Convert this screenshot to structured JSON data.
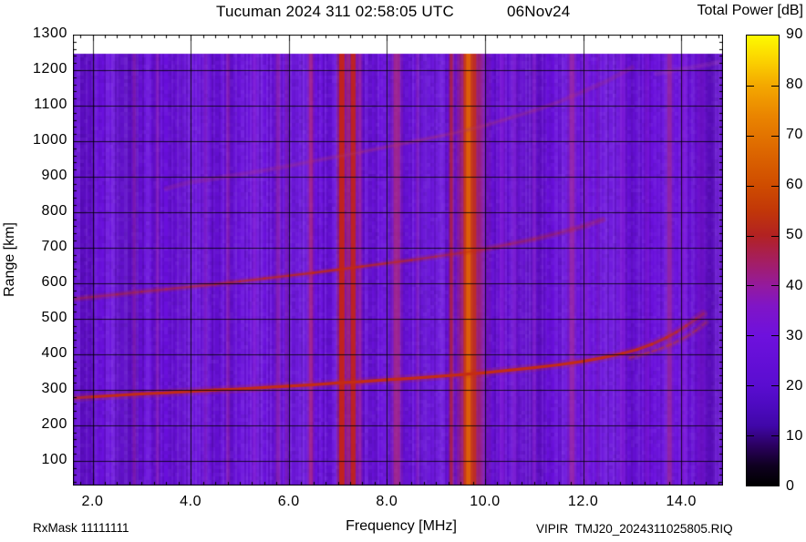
{
  "header": {
    "title": "Tucuman 2024 311 02:58:05 UTC",
    "date": "06Nov24"
  },
  "footer": {
    "left": "RxMask 11111111",
    "right": "VIPIR  TMJ20_2024311025805.RIQ"
  },
  "chart_data": {
    "type": "heatmap",
    "subtype": "ionogram-spectrogram",
    "title": "Tucuman 2024 311 02:58:05 UTC 06Nov24",
    "xlabel": "Frequency [MHz]",
    "ylabel": "Range [km]",
    "grid": true,
    "x_axis": {
      "min": 1.6,
      "max": 14.85,
      "minor_step": 0.25,
      "major_ticks": [
        2,
        4,
        6,
        8,
        10,
        12,
        14
      ],
      "tick_labels": [
        "2.0",
        "4.0",
        "6.0",
        "8.0",
        "10.0",
        "12.0",
        "14.0"
      ]
    },
    "y_axis": {
      "min": 30,
      "max": 1300,
      "minor_step": 20,
      "major_ticks": [
        100,
        200,
        300,
        400,
        500,
        600,
        700,
        800,
        900,
        1000,
        1100,
        1200,
        1300
      ],
      "tick_labels": [
        "100",
        "200",
        "300",
        "400",
        "500",
        "600",
        "700",
        "800",
        "900",
        "1000",
        "1100",
        "1200",
        "1300"
      ]
    },
    "background": {
      "base_color": "#6a10dd",
      "data_r_min": 30,
      "data_r_max": 1245
    },
    "colorbar": {
      "title": "Total Power [dB]",
      "min": 0,
      "max": 90,
      "tick_step": 10,
      "tick_labels": [
        "0",
        "10",
        "20",
        "30",
        "40",
        "50",
        "60",
        "70",
        "80",
        "90"
      ],
      "palette_stops": [
        [
          0,
          "#000000"
        ],
        [
          4,
          "#0f0020"
        ],
        [
          8,
          "#2b0060"
        ],
        [
          12,
          "#4007a8"
        ],
        [
          16,
          "#4d0ac0"
        ],
        [
          20,
          "#5a0dd0"
        ],
        [
          30,
          "#6e11dd"
        ],
        [
          36,
          "#8015c6"
        ],
        [
          40,
          "#941a9e"
        ],
        [
          45,
          "#a51e60"
        ],
        [
          50,
          "#b22222"
        ],
        [
          55,
          "#c23708"
        ],
        [
          60,
          "#cf4c00"
        ],
        [
          67,
          "#dd6700"
        ],
        [
          74,
          "#ea8500"
        ],
        [
          80,
          "#f4a800"
        ],
        [
          85,
          "#fbd200"
        ],
        [
          90,
          "#fdfa00"
        ]
      ]
    },
    "rfi_stripes": [
      {
        "f": 2.85,
        "w": 0.06,
        "color": "#b03090",
        "alpha": 0.28
      },
      {
        "f": 3.32,
        "w": 0.06,
        "color": "#b03090",
        "alpha": 0.25
      },
      {
        "f": 4.3,
        "w": 0.06,
        "color": "#a028b8",
        "alpha": 0.25
      },
      {
        "f": 4.76,
        "w": 0.06,
        "color": "#b03090",
        "alpha": 0.3
      },
      {
        "f": 5.3,
        "w": 0.08,
        "color": "#8f1fd2",
        "alpha": 0.35
      },
      {
        "f": 5.78,
        "w": 0.07,
        "color": "#b03090",
        "alpha": 0.32
      },
      {
        "f": 5.95,
        "w": 0.05,
        "color": "#b03090",
        "alpha": 0.22
      },
      {
        "f": 6.45,
        "w": 0.08,
        "color": "#c02860",
        "alpha": 0.5
      },
      {
        "f": 7.08,
        "w": 0.11,
        "color": "#cc2508",
        "alpha": 0.85
      },
      {
        "f": 7.2,
        "w": 0.05,
        "color": "#c03060",
        "alpha": 0.45
      },
      {
        "f": 7.31,
        "w": 0.1,
        "color": "#cc2508",
        "alpha": 0.8
      },
      {
        "f": 7.45,
        "w": 0.06,
        "color": "#b02a85",
        "alpha": 0.5
      },
      {
        "f": 8.2,
        "w": 0.13,
        "color": "#c03060",
        "alpha": 0.5
      },
      {
        "f": 8.62,
        "w": 0.05,
        "color": "#a028b0",
        "alpha": 0.3
      },
      {
        "f": 9.31,
        "w": 0.06,
        "color": "#c42512",
        "alpha": 0.6
      },
      {
        "f": 9.7,
        "w": 0.42,
        "color": "#b02868",
        "alpha": 0.45
      },
      {
        "f": 9.69,
        "w": 0.26,
        "color": "#c63012",
        "alpha": 0.8
      },
      {
        "f": 9.66,
        "w": 0.09,
        "color": "#dd6008",
        "alpha": 0.95
      },
      {
        "f": 9.95,
        "w": 0.07,
        "color": "#b03090",
        "alpha": 0.28
      },
      {
        "f": 10.35,
        "w": 0.1,
        "color": "#8a1cd8",
        "alpha": 0.45
      },
      {
        "f": 10.6,
        "w": 0.08,
        "color": "#8a1cd8",
        "alpha": 0.35
      },
      {
        "f": 11.0,
        "w": 0.06,
        "color": "#9a28c8",
        "alpha": 0.3
      },
      {
        "f": 11.77,
        "w": 0.1,
        "color": "#b03090",
        "alpha": 0.5
      },
      {
        "f": 12.05,
        "w": 0.1,
        "color": "#8a1cd8",
        "alpha": 0.45
      },
      {
        "f": 12.3,
        "w": 0.06,
        "color": "#8a1cd8",
        "alpha": 0.3
      },
      {
        "f": 12.8,
        "w": 0.1,
        "color": "#8a1cd8",
        "alpha": 0.45
      },
      {
        "f": 13.3,
        "w": 0.08,
        "color": "#8a1cd8",
        "alpha": 0.35
      },
      {
        "f": 13.76,
        "w": 0.09,
        "color": "#b03090",
        "alpha": 0.5
      },
      {
        "f": 14.05,
        "w": 0.1,
        "color": "#8a1cd8",
        "alpha": 0.45
      },
      {
        "f": 14.4,
        "w": 0.14,
        "color": "#7a14d0",
        "alpha": 0.4
      }
    ],
    "shade_bands": [
      {
        "f": 1.9,
        "w": 0.3,
        "color": "#000000",
        "alpha": 0.04
      },
      {
        "f": 2.7,
        "w": 0.5,
        "color": "#000000",
        "alpha": 0.05
      },
      {
        "f": 3.9,
        "w": 0.35,
        "color": "#ffffff",
        "alpha": 0.03
      },
      {
        "f": 6.2,
        "w": 0.5,
        "color": "#ffffff",
        "alpha": 0.03
      },
      {
        "f": 8.9,
        "w": 0.6,
        "color": "#ffffff",
        "alpha": 0.03
      },
      {
        "f": 10.9,
        "w": 0.7,
        "color": "#000000",
        "alpha": 0.05
      },
      {
        "f": 12.55,
        "w": 0.5,
        "color": "#ffffff",
        "alpha": 0.03
      },
      {
        "f": 14.6,
        "w": 0.5,
        "color": "#000000",
        "alpha": 0.06
      }
    ],
    "traces": {
      "point_format": "[frequency_MHz, range_km, intensity]",
      "first_hop": {
        "name": "F-region echo trace, 1st hop",
        "color": "#c52c12",
        "width": 3.2,
        "points": [
          [
            1.65,
            277,
            0.5
          ],
          [
            2.0,
            280,
            0.9
          ],
          [
            2.5,
            284,
            0.95
          ],
          [
            3.0,
            288,
            0.95
          ],
          [
            3.5,
            291,
            0.95
          ],
          [
            4.0,
            295,
            0.95
          ],
          [
            4.5,
            299,
            0.95
          ],
          [
            5.0,
            302,
            0.95
          ],
          [
            5.5,
            306,
            0.95
          ],
          [
            6.0,
            310,
            0.95
          ],
          [
            6.5,
            314,
            0.95
          ],
          [
            7.0,
            319,
            0.95
          ],
          [
            7.5,
            323,
            0.95
          ],
          [
            8.0,
            328,
            0.95
          ],
          [
            8.5,
            332,
            0.95
          ],
          [
            9.0,
            337,
            0.95
          ],
          [
            9.5,
            342,
            0.95
          ],
          [
            10.0,
            348,
            0.95
          ],
          [
            10.5,
            355,
            0.95
          ],
          [
            11.0,
            362,
            0.95
          ],
          [
            11.5,
            370,
            0.95
          ],
          [
            12.0,
            380,
            0.95
          ],
          [
            12.4,
            390,
            0.9
          ],
          [
            12.8,
            402,
            0.9
          ],
          [
            13.1,
            413,
            0.85
          ],
          [
            13.4,
            428,
            0.75
          ],
          [
            13.7,
            447,
            0.65
          ],
          [
            13.9,
            462,
            0.55
          ],
          [
            14.1,
            480,
            0.45
          ],
          [
            14.3,
            499,
            0.35
          ],
          [
            14.45,
            514,
            0.25
          ]
        ]
      },
      "x_mode_branch": {
        "name": "X-mode split branch",
        "color": "#c23c1e",
        "width": 2.4,
        "points": [
          [
            12.95,
            390,
            0.45
          ],
          [
            13.25,
            401,
            0.5
          ],
          [
            13.55,
            414,
            0.5
          ],
          [
            13.85,
            431,
            0.45
          ],
          [
            14.1,
            449,
            0.4
          ],
          [
            14.3,
            467,
            0.33
          ],
          [
            14.5,
            489,
            0.25
          ]
        ]
      },
      "second_hop": {
        "name": "2nd hop multiple echo",
        "color": "#c42a10",
        "width": 2.4,
        "points": [
          [
            1.65,
            556,
            0.3
          ],
          [
            2.0,
            561,
            0.32
          ],
          [
            2.5,
            568,
            0.33
          ],
          [
            3.0,
            576,
            0.35
          ],
          [
            3.5,
            583,
            0.4
          ],
          [
            4.0,
            590,
            0.45
          ],
          [
            4.5,
            597,
            0.5
          ],
          [
            5.0,
            605,
            0.55
          ],
          [
            5.5,
            613,
            0.62
          ],
          [
            6.0,
            621,
            0.7
          ],
          [
            6.5,
            629,
            0.78
          ],
          [
            7.0,
            638,
            0.8
          ],
          [
            7.5,
            647,
            0.72
          ],
          [
            8.0,
            656,
            0.6
          ],
          [
            8.5,
            665,
            0.5
          ],
          [
            9.0,
            675,
            0.42
          ],
          [
            9.5,
            685,
            0.36
          ],
          [
            10.0,
            696,
            0.32
          ],
          [
            10.5,
            710,
            0.28
          ],
          [
            11.0,
            724,
            0.25
          ],
          [
            11.5,
            741,
            0.22
          ],
          [
            12.0,
            760,
            0.18
          ],
          [
            12.4,
            779,
            0.14
          ]
        ]
      },
      "third_hop": {
        "name": "3rd hop multiple echo",
        "color": "#b23668",
        "width": 2.0,
        "points": [
          [
            3.5,
            866,
            0.08
          ],
          [
            4.0,
            885,
            0.1
          ],
          [
            4.5,
            895,
            0.1
          ],
          [
            5.0,
            906,
            0.11
          ],
          [
            5.5,
            918,
            0.13
          ],
          [
            6.0,
            930,
            0.16
          ],
          [
            6.5,
            944,
            0.2
          ],
          [
            7.0,
            957,
            0.26
          ],
          [
            7.5,
            970,
            0.3
          ],
          [
            8.0,
            984,
            0.3
          ],
          [
            8.5,
            998,
            0.3
          ],
          [
            9.0,
            1012,
            0.3
          ],
          [
            9.5,
            1027,
            0.28
          ],
          [
            10.0,
            1044,
            0.26
          ],
          [
            10.5,
            1065,
            0.24
          ],
          [
            11.0,
            1086,
            0.2
          ],
          [
            11.5,
            1110,
            0.17
          ],
          [
            12.0,
            1140,
            0.14
          ],
          [
            12.5,
            1170,
            0.11
          ],
          [
            13.0,
            1208,
            0.08
          ]
        ]
      },
      "top_faint_echo": {
        "name": "faint high-range echo, top right",
        "color": "#b050a0",
        "width": 2.0,
        "points": [
          [
            13.5,
            1190,
            0.1
          ],
          [
            14.0,
            1203,
            0.13
          ],
          [
            14.4,
            1212,
            0.13
          ],
          [
            14.75,
            1222,
            0.1
          ]
        ]
      }
    }
  }
}
